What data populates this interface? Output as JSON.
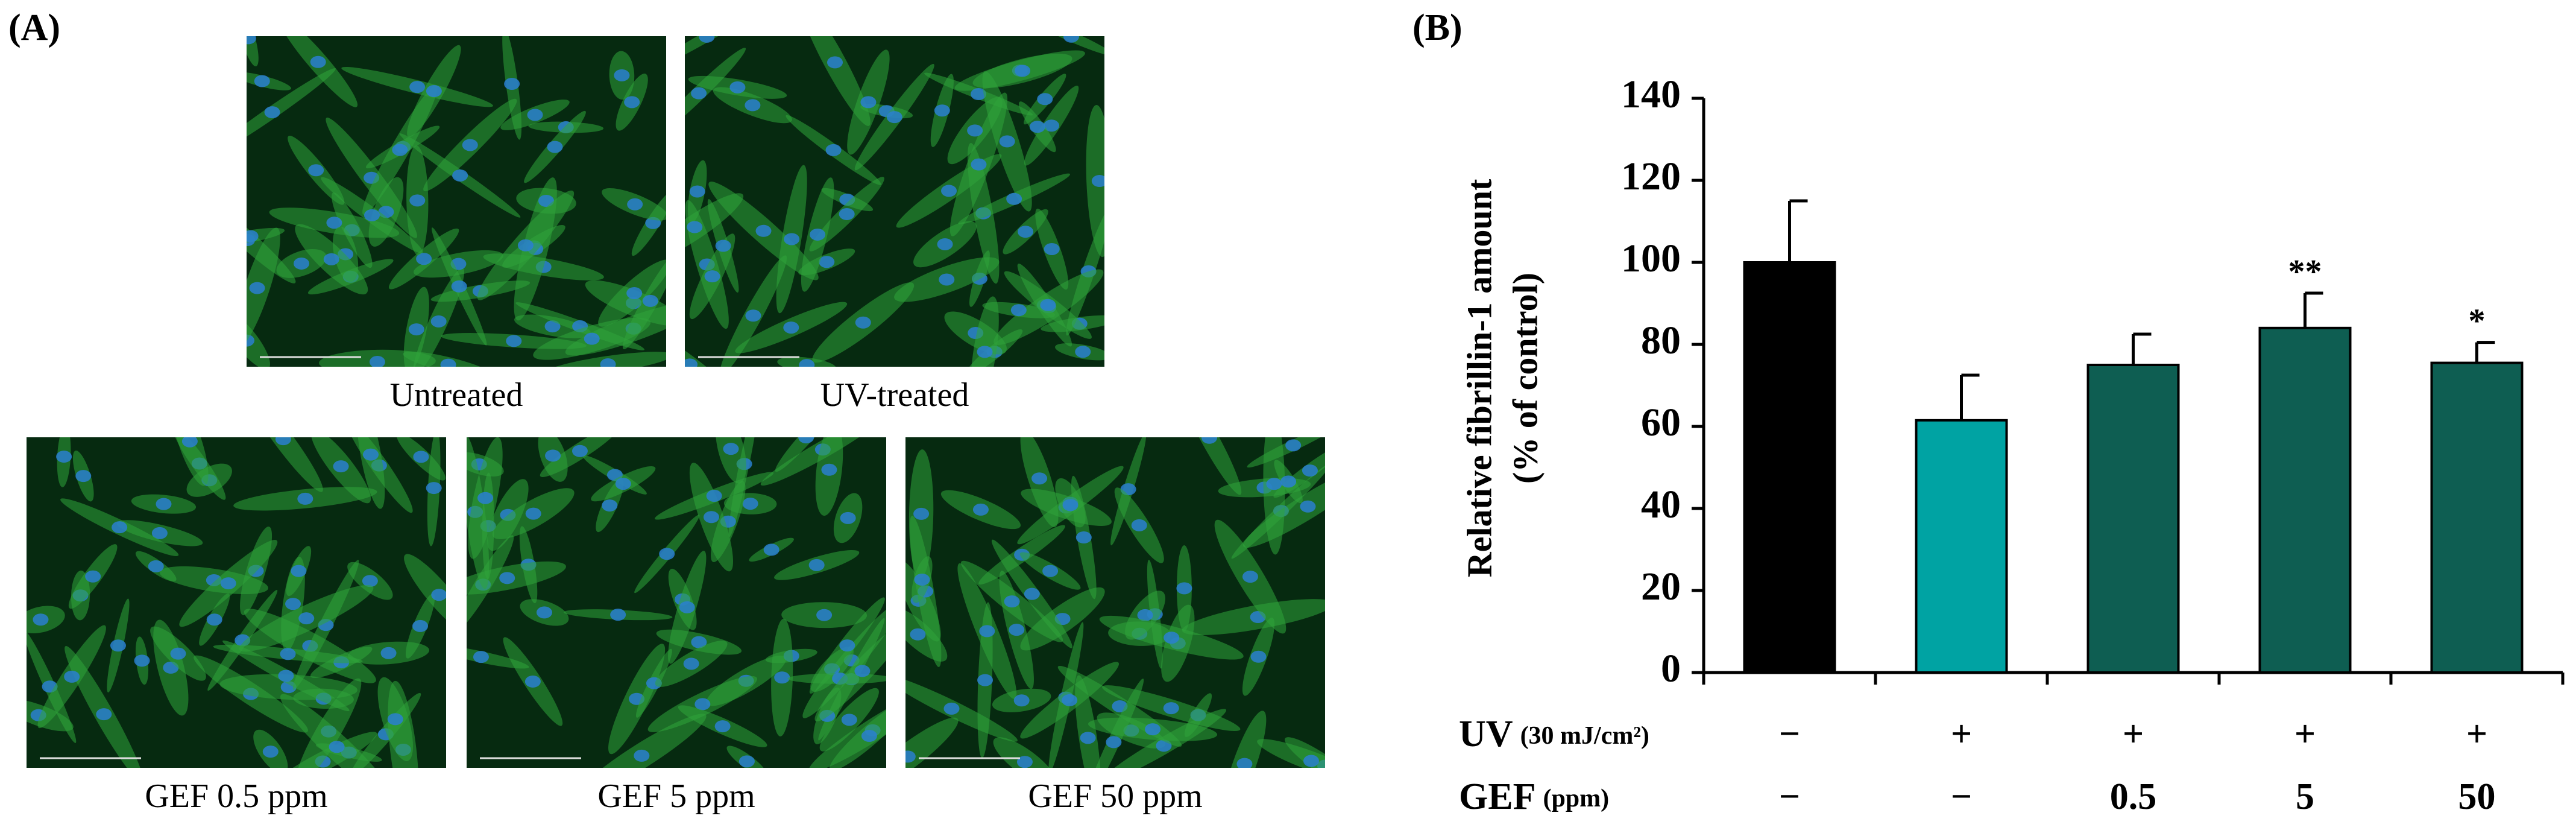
{
  "panel_a": {
    "label": "(A)",
    "images": [
      {
        "caption": "Untreated"
      },
      {
        "caption": "UV-treated"
      },
      {
        "caption": "GEF 0.5 ppm"
      },
      {
        "caption": "GEF 5 ppm"
      },
      {
        "caption": "GEF 50 ppm"
      }
    ]
  },
  "chart_data": {
    "type": "bar",
    "panel_label": "(B)",
    "y_label": [
      "Relative fibrillin-1 amount",
      "(% of control)"
    ],
    "ylim": [
      0,
      140
    ],
    "yticks": [
      0,
      20,
      40,
      60,
      80,
      100,
      120,
      140
    ],
    "series": [
      {
        "values": [
          100,
          61.5,
          75,
          84,
          75.5
        ],
        "errors": [
          15,
          11,
          7.5,
          8.5,
          5
        ],
        "colors": [
          "#000000",
          "#00a3a3",
          "#0e5e52",
          "#0e5e52",
          "#0e5e52"
        ],
        "significance": [
          null,
          null,
          null,
          "**",
          "*"
        ]
      }
    ],
    "rows": [
      {
        "label": "UV",
        "unit": "(30 mJ/cm²)",
        "values": [
          "−",
          "+",
          "+",
          "+",
          "+"
        ]
      },
      {
        "label": "GEF",
        "unit": "(ppm)",
        "values": [
          "−",
          "−",
          "0.5",
          "5",
          "50"
        ]
      }
    ]
  }
}
